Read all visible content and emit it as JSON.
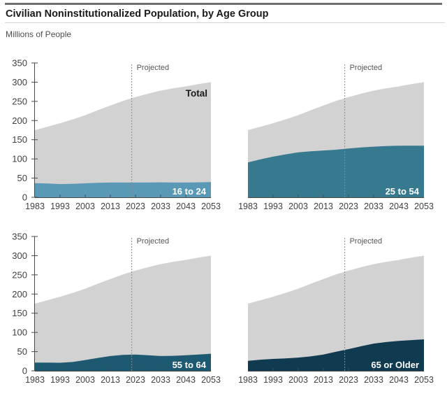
{
  "page": {
    "title": "Civilian Noninstitutionalized Population, by Age Group",
    "subtitle": "Millions of People"
  },
  "colors": {
    "total_area": "#d2d2d2",
    "axis": "#4a4a4a",
    "tick_label": "#404040",
    "projected_line": "#8c8c8c",
    "projected_text": "#555555",
    "total_label_text": "#1a1a1a",
    "series_label_text": "#ffffff"
  },
  "chart_data": {
    "type": "area",
    "title": "Civilian Noninstitutionalized Population, by Age Group",
    "ylabel": "Millions of People",
    "x": [
      1983,
      1988,
      1993,
      1998,
      2003,
      2008,
      2013,
      2018,
      2023,
      2028,
      2033,
      2038,
      2043,
      2048,
      2053
    ],
    "x_tick_labels": [
      1983,
      1993,
      2003,
      2013,
      2023,
      2033,
      2043,
      2053
    ],
    "x_interior_ticks": [
      1993,
      2003,
      2013,
      2023,
      2033,
      2043
    ],
    "ylim": [
      0,
      350
    ],
    "y_ticks": [
      0,
      50,
      100,
      150,
      200,
      250,
      300,
      350
    ],
    "projected_year": 2022,
    "projected_label": "Projected",
    "legend_position": "in-plot",
    "grid": false,
    "total_series": {
      "name": "Total",
      "values": [
        175,
        184,
        193,
        203,
        214,
        227,
        239,
        251,
        261,
        270,
        278,
        284,
        289,
        295,
        300
      ]
    },
    "panels": [
      {
        "name": "16 to 24",
        "color": "#5a99b5",
        "values": [
          37,
          36,
          34.5,
          35,
          36.5,
          38,
          38.5,
          38.5,
          38.5,
          38.5,
          39,
          38.5,
          38.5,
          39,
          39.5
        ],
        "y_axis_labels": true,
        "total_label": true
      },
      {
        "name": "25 to 54",
        "color": "#377a90",
        "values": [
          91,
          99,
          106,
          112,
          117,
          120,
          122,
          124,
          127,
          130,
          132,
          133.5,
          134.5,
          134.5,
          134.5
        ],
        "y_axis_labels": false,
        "total_label": false
      },
      {
        "name": "55 to 64",
        "color": "#1d5971",
        "values": [
          21.5,
          21.5,
          21,
          23,
          28,
          33.5,
          38.5,
          41.5,
          42.5,
          40.5,
          38.5,
          39,
          40.5,
          42.5,
          44.5
        ],
        "y_axis_labels": true,
        "total_label": false
      },
      {
        "name": "65 or Older",
        "color": "#0f3a50",
        "values": [
          26,
          29,
          31,
          32.5,
          34.5,
          37.5,
          42.5,
          49.5,
          56.5,
          64,
          71,
          75,
          78,
          80,
          82
        ],
        "y_axis_labels": false,
        "total_label": false
      }
    ]
  }
}
